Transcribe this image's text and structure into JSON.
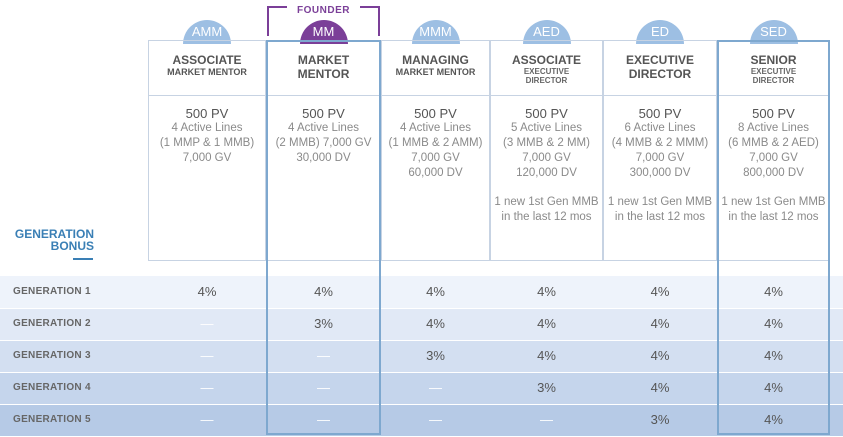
{
  "founder_label": "FOUNDER",
  "columns": [
    {
      "abbr": "AMM",
      "badge_color": "#9dbfe3",
      "title_main": "ASSOCIATE",
      "title_sub": "MARKET MENTOR",
      "style": "a",
      "req": [
        "500 PV",
        "4 Active Lines",
        "(1 MMP & 1 MMB)",
        "7,000 GV"
      ],
      "extra": []
    },
    {
      "abbr": "MM",
      "badge_color": "#7b3f98",
      "title_main": "MARKET",
      "title_sub": "MENTOR",
      "style": "b",
      "req": [
        "500 PV",
        "4 Active Lines",
        "(2 MMB) 7,000 GV",
        "30,000 DV"
      ],
      "extra": []
    },
    {
      "abbr": "MMM",
      "badge_color": "#9dbfe3",
      "title_main": "MANAGING",
      "title_sub": "MARKET MENTOR",
      "style": "a",
      "req": [
        "500 PV",
        "4 Active Lines",
        "(1 MMB & 2 AMM)",
        "7,000 GV",
        "60,000 DV"
      ],
      "extra": []
    },
    {
      "abbr": "AED",
      "badge_color": "#9dbfe3",
      "title_main": "ASSOCIATE",
      "title_sub": "EXECUTIVE",
      "title_sub2": "DIRECTOR",
      "style": "c",
      "req": [
        "500 PV",
        "5 Active Lines",
        "(3 MMB & 2 MM)",
        "7,000 GV",
        "120,000 DV"
      ],
      "extra": [
        "1 new 1st Gen MMB",
        "in the last 12 mos"
      ]
    },
    {
      "abbr": "ED",
      "badge_color": "#9dbfe3",
      "title_main": "EXECUTIVE",
      "title_sub": "DIRECTOR",
      "style": "b",
      "req": [
        "500 PV",
        "6 Active Lines",
        "(4 MMB & 2 MMM)",
        "7,000 GV",
        "300,000 DV"
      ],
      "extra": [
        "1 new 1st Gen MMB",
        "in the last 12 mos"
      ]
    },
    {
      "abbr": "SED",
      "badge_color": "#9dbfe3",
      "title_main": "SENIOR",
      "title_sub": "EXECUTIVE",
      "title_sub2": "DIRECTOR",
      "style": "c",
      "req": [
        "500 PV",
        "8 Active Lines",
        "(6 MMB & 2 AED)",
        "7,000 GV",
        "800,000 DV"
      ],
      "extra": [
        "1 new 1st Gen MMB",
        "in the last 12 mos"
      ]
    }
  ],
  "generation_bonus": {
    "title_line1": "GENERATION",
    "title_line2": "BONUS",
    "rows": [
      {
        "label": "GENERATION 1",
        "values": [
          "4%",
          "4%",
          "4%",
          "4%",
          "4%",
          "4%"
        ]
      },
      {
        "label": "GENERATION 2",
        "values": [
          "—",
          "3%",
          "4%",
          "4%",
          "4%",
          "4%"
        ]
      },
      {
        "label": "GENERATION 3",
        "values": [
          "—",
          "—",
          "3%",
          "4%",
          "4%",
          "4%"
        ]
      },
      {
        "label": "GENERATION 4",
        "values": [
          "—",
          "—",
          "—",
          "3%",
          "4%",
          "4%"
        ]
      },
      {
        "label": "GENERATION 5",
        "values": [
          "—",
          "—",
          "—",
          "—",
          "3%",
          "4%"
        ]
      }
    ]
  },
  "colors": {
    "row_backgrounds": [
      "#eef3fb",
      "#e1e9f6",
      "#d3dff1",
      "#c5d5ec",
      "#b6cae6"
    ],
    "accent": "#7b3f98",
    "highlight_border": "#7ea8cf",
    "generation_title": "#3a7fb5"
  }
}
